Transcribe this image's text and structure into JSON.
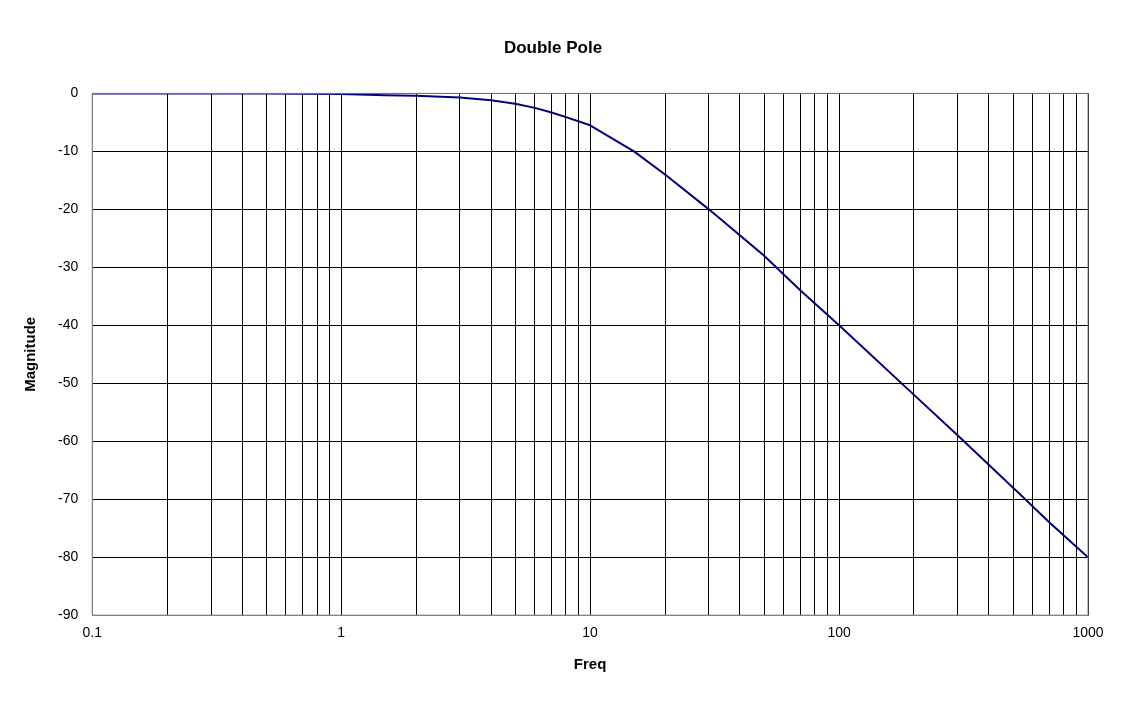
{
  "chart_data": {
    "type": "line",
    "title": "Double Pole",
    "xlabel": "Freq",
    "ylabel": "Magnitude",
    "log": "x",
    "grid": true,
    "legend": false,
    "marker": "none",
    "line_style": "solid",
    "xlim": [
      0.1,
      1000
    ],
    "ylim": [
      -90,
      0
    ],
    "xticks": [
      0.1,
      {
        "value": 0.2,
        "label": null
      },
      {
        "value": 0.3,
        "label": null
      },
      {
        "value": 0.4,
        "label": null
      },
      {
        "value": 0.5,
        "label": null
      },
      {
        "value": 0.6,
        "label": null
      },
      {
        "value": 0.7,
        "label": null
      },
      {
        "value": 0.8,
        "label": null
      },
      {
        "value": 0.9,
        "label": null
      },
      1,
      {
        "value": 2,
        "label": null
      },
      {
        "value": 3,
        "label": null
      },
      {
        "value": 4,
        "label": null
      },
      {
        "value": 5,
        "label": null
      },
      {
        "value": 6,
        "label": null
      },
      {
        "value": 7,
        "label": null
      },
      {
        "value": 8,
        "label": null
      },
      {
        "value": 9,
        "label": null
      },
      10,
      {
        "value": 20,
        "label": null
      },
      {
        "value": 30,
        "label": null
      },
      {
        "value": 40,
        "label": null
      },
      {
        "value": 50,
        "label": null
      },
      {
        "value": 60,
        "label": null
      },
      {
        "value": 70,
        "label": null
      },
      {
        "value": 80,
        "label": null
      },
      {
        "value": 90,
        "label": null
      },
      100,
      {
        "value": 200,
        "label": null
      },
      {
        "value": 300,
        "label": null
      },
      {
        "value": 400,
        "label": null
      },
      {
        "value": 500,
        "label": null
      },
      {
        "value": 600,
        "label": null
      },
      {
        "value": 700,
        "label": null
      },
      {
        "value": 800,
        "label": null
      },
      {
        "value": 900,
        "label": null
      },
      1000
    ],
    "yticks": [
      -90,
      -80,
      -70,
      -60,
      -50,
      -40,
      -30,
      -20,
      -10,
      0
    ],
    "series": [
      {
        "color": "#000080",
        "x": [
          0.1,
          0.5,
          1,
          1.5,
          2,
          3,
          4,
          5,
          6,
          7,
          8,
          10,
          15,
          20,
          30,
          50,
          70,
          100,
          200,
          300,
          500,
          700,
          1000
        ],
        "values": [
          0,
          0,
          -0.1,
          -0.3,
          -0.4,
          -0.7,
          -1.2,
          -1.8,
          -2.5,
          -3.3,
          -4.1,
          -5.5,
          -10,
          -14,
          -20,
          -28,
          -34,
          -40,
          -52,
          -59,
          -68,
          -74,
          -80
        ]
      }
    ]
  }
}
